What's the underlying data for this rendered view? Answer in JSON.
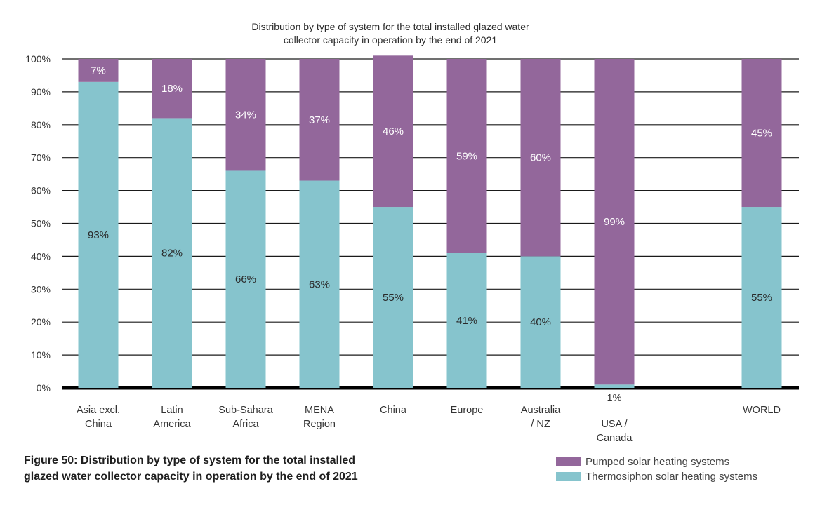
{
  "chart_data": {
    "type": "bar",
    "stacked": true,
    "normalized": true,
    "title": [
      "Distribution by type of system for the total installed glazed water",
      "collector capacity in operation by the end of 2021"
    ],
    "categories": [
      [
        "Asia excl.",
        "China"
      ],
      [
        "Latin",
        "America"
      ],
      [
        "Sub-Sahara",
        "Africa"
      ],
      [
        "MENA",
        "Region"
      ],
      [
        "China"
      ],
      [
        "Europe"
      ],
      [
        "Australia",
        "/ NZ"
      ],
      [
        "USA /",
        "Canada"
      ],
      [],
      [
        "WORLD"
      ]
    ],
    "series": [
      {
        "name": "Thermosiphon solar heating systems",
        "color": "#86c4cd",
        "values": [
          93,
          82,
          66,
          63,
          55,
          41,
          40,
          1,
          null,
          55
        ],
        "labels": [
          "93%",
          "82%",
          "66%",
          "63%",
          "55%",
          "41%",
          "40%",
          "1%",
          "",
          "55%"
        ]
      },
      {
        "name": "Pumped solar heating systems",
        "color": "#93679b",
        "values": [
          7,
          18,
          34,
          37,
          46,
          59,
          60,
          99,
          null,
          45
        ],
        "labels": [
          "7%",
          "18%",
          "34%",
          "37%",
          "46%",
          "59%",
          "60%",
          "99%",
          "",
          "45%"
        ]
      }
    ],
    "ylim": [
      0,
      100
    ],
    "yticks": [
      "0%",
      "10%",
      "20%",
      "30%",
      "40%",
      "50%",
      "60%",
      "70%",
      "80%",
      "90%",
      "100%"
    ],
    "xlabel": "",
    "ylabel": "",
    "grid": true,
    "legend_position": "bottom-right"
  },
  "caption": "Figure 50: Distribution by type of system for the total installed glazed water collector capacity in operation by the end of 2021",
  "legend": {
    "items": [
      {
        "label": "Pumped solar heating systems",
        "color": "#93679b"
      },
      {
        "label": "Thermosiphon solar heating systems",
        "color": "#86c4cd"
      }
    ]
  }
}
